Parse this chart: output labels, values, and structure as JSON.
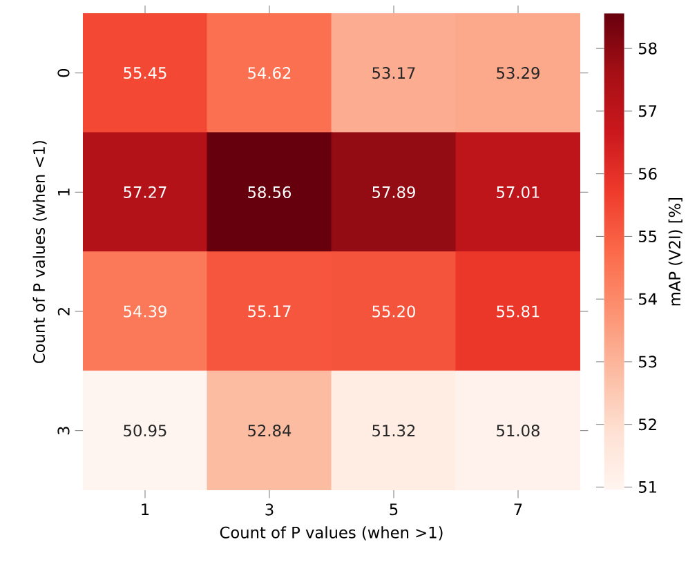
{
  "chart_data": {
    "type": "heatmap",
    "xlabel": "Count of P values (when >1)",
    "ylabel": "Count of P values (when <1)",
    "clabel": "mAP (V2I) [%]",
    "categories": [
      "1",
      "3",
      "5",
      "7"
    ],
    "y_categories": [
      "0",
      "1",
      "2",
      "3"
    ],
    "cells": [
      [
        55.45,
        54.62,
        53.17,
        53.29
      ],
      [
        57.27,
        58.56,
        57.89,
        57.01
      ],
      [
        54.39,
        55.17,
        55.2,
        55.81
      ],
      [
        50.95,
        52.84,
        51.32,
        51.08
      ]
    ],
    "cell_labels": [
      [
        "55.45",
        "54.62",
        "53.17",
        "53.29"
      ],
      [
        "57.27",
        "58.56",
        "57.89",
        "57.01"
      ],
      [
        "54.39",
        "55.17",
        "55.20",
        "55.81"
      ],
      [
        "50.95",
        "52.84",
        "51.32",
        "51.08"
      ]
    ],
    "clim": [
      50.95,
      58.56
    ],
    "cticks": [
      51,
      52,
      53,
      54,
      55,
      56,
      57,
      58
    ]
  }
}
